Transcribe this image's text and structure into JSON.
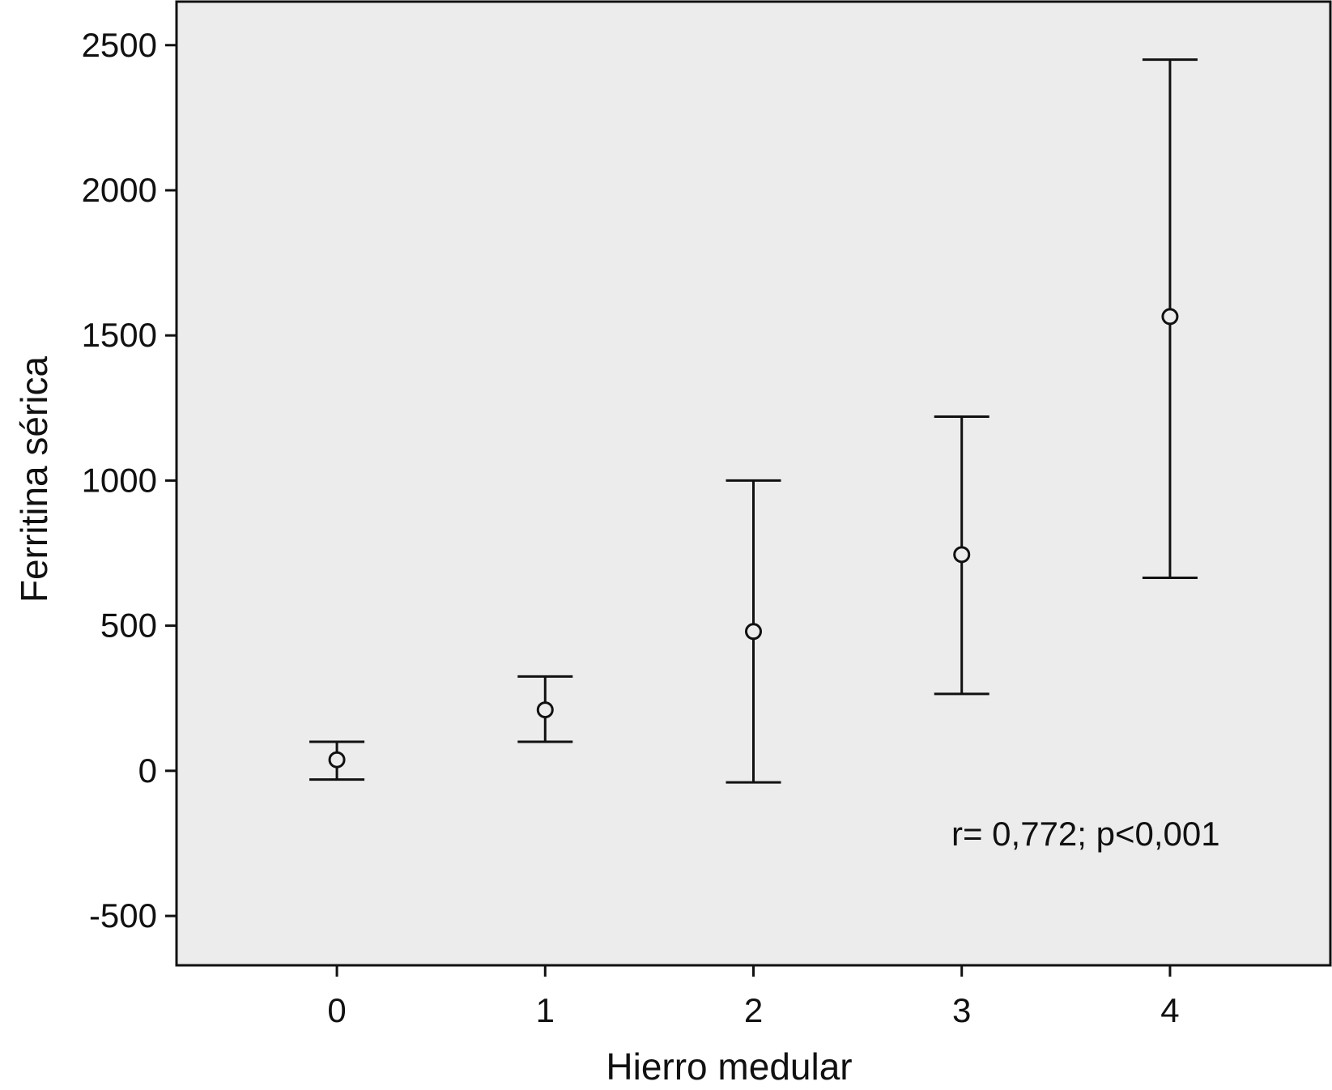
{
  "chart_data": {
    "type": "errorbar",
    "xlabel": "Hierro medular",
    "ylabel": "Ferritina sérica",
    "x": [
      0,
      1,
      2,
      3,
      4
    ],
    "x_tick_labels": [
      "0",
      "1",
      "2",
      "3",
      "4"
    ],
    "xlim": [
      -0.77,
      4.77
    ],
    "ylim": [
      -670,
      2650
    ],
    "y_ticks": [
      -500,
      0,
      500,
      1000,
      1500,
      2000,
      2500
    ],
    "y_tick_labels": [
      "-500",
      "0",
      "500",
      "1000",
      "1500",
      "2000",
      "2500"
    ],
    "series": [
      {
        "mean": [
          38,
          210,
          480,
          745,
          1565
        ],
        "lower": [
          -30,
          100,
          -40,
          265,
          665
        ],
        "upper": [
          100,
          325,
          1000,
          1220,
          2450
        ]
      }
    ],
    "annotation": "r= 0,772; p<0,001",
    "grid": false,
    "legend": "none",
    "colors": {
      "plot_background": "#ececec",
      "ink": "#111111"
    }
  }
}
